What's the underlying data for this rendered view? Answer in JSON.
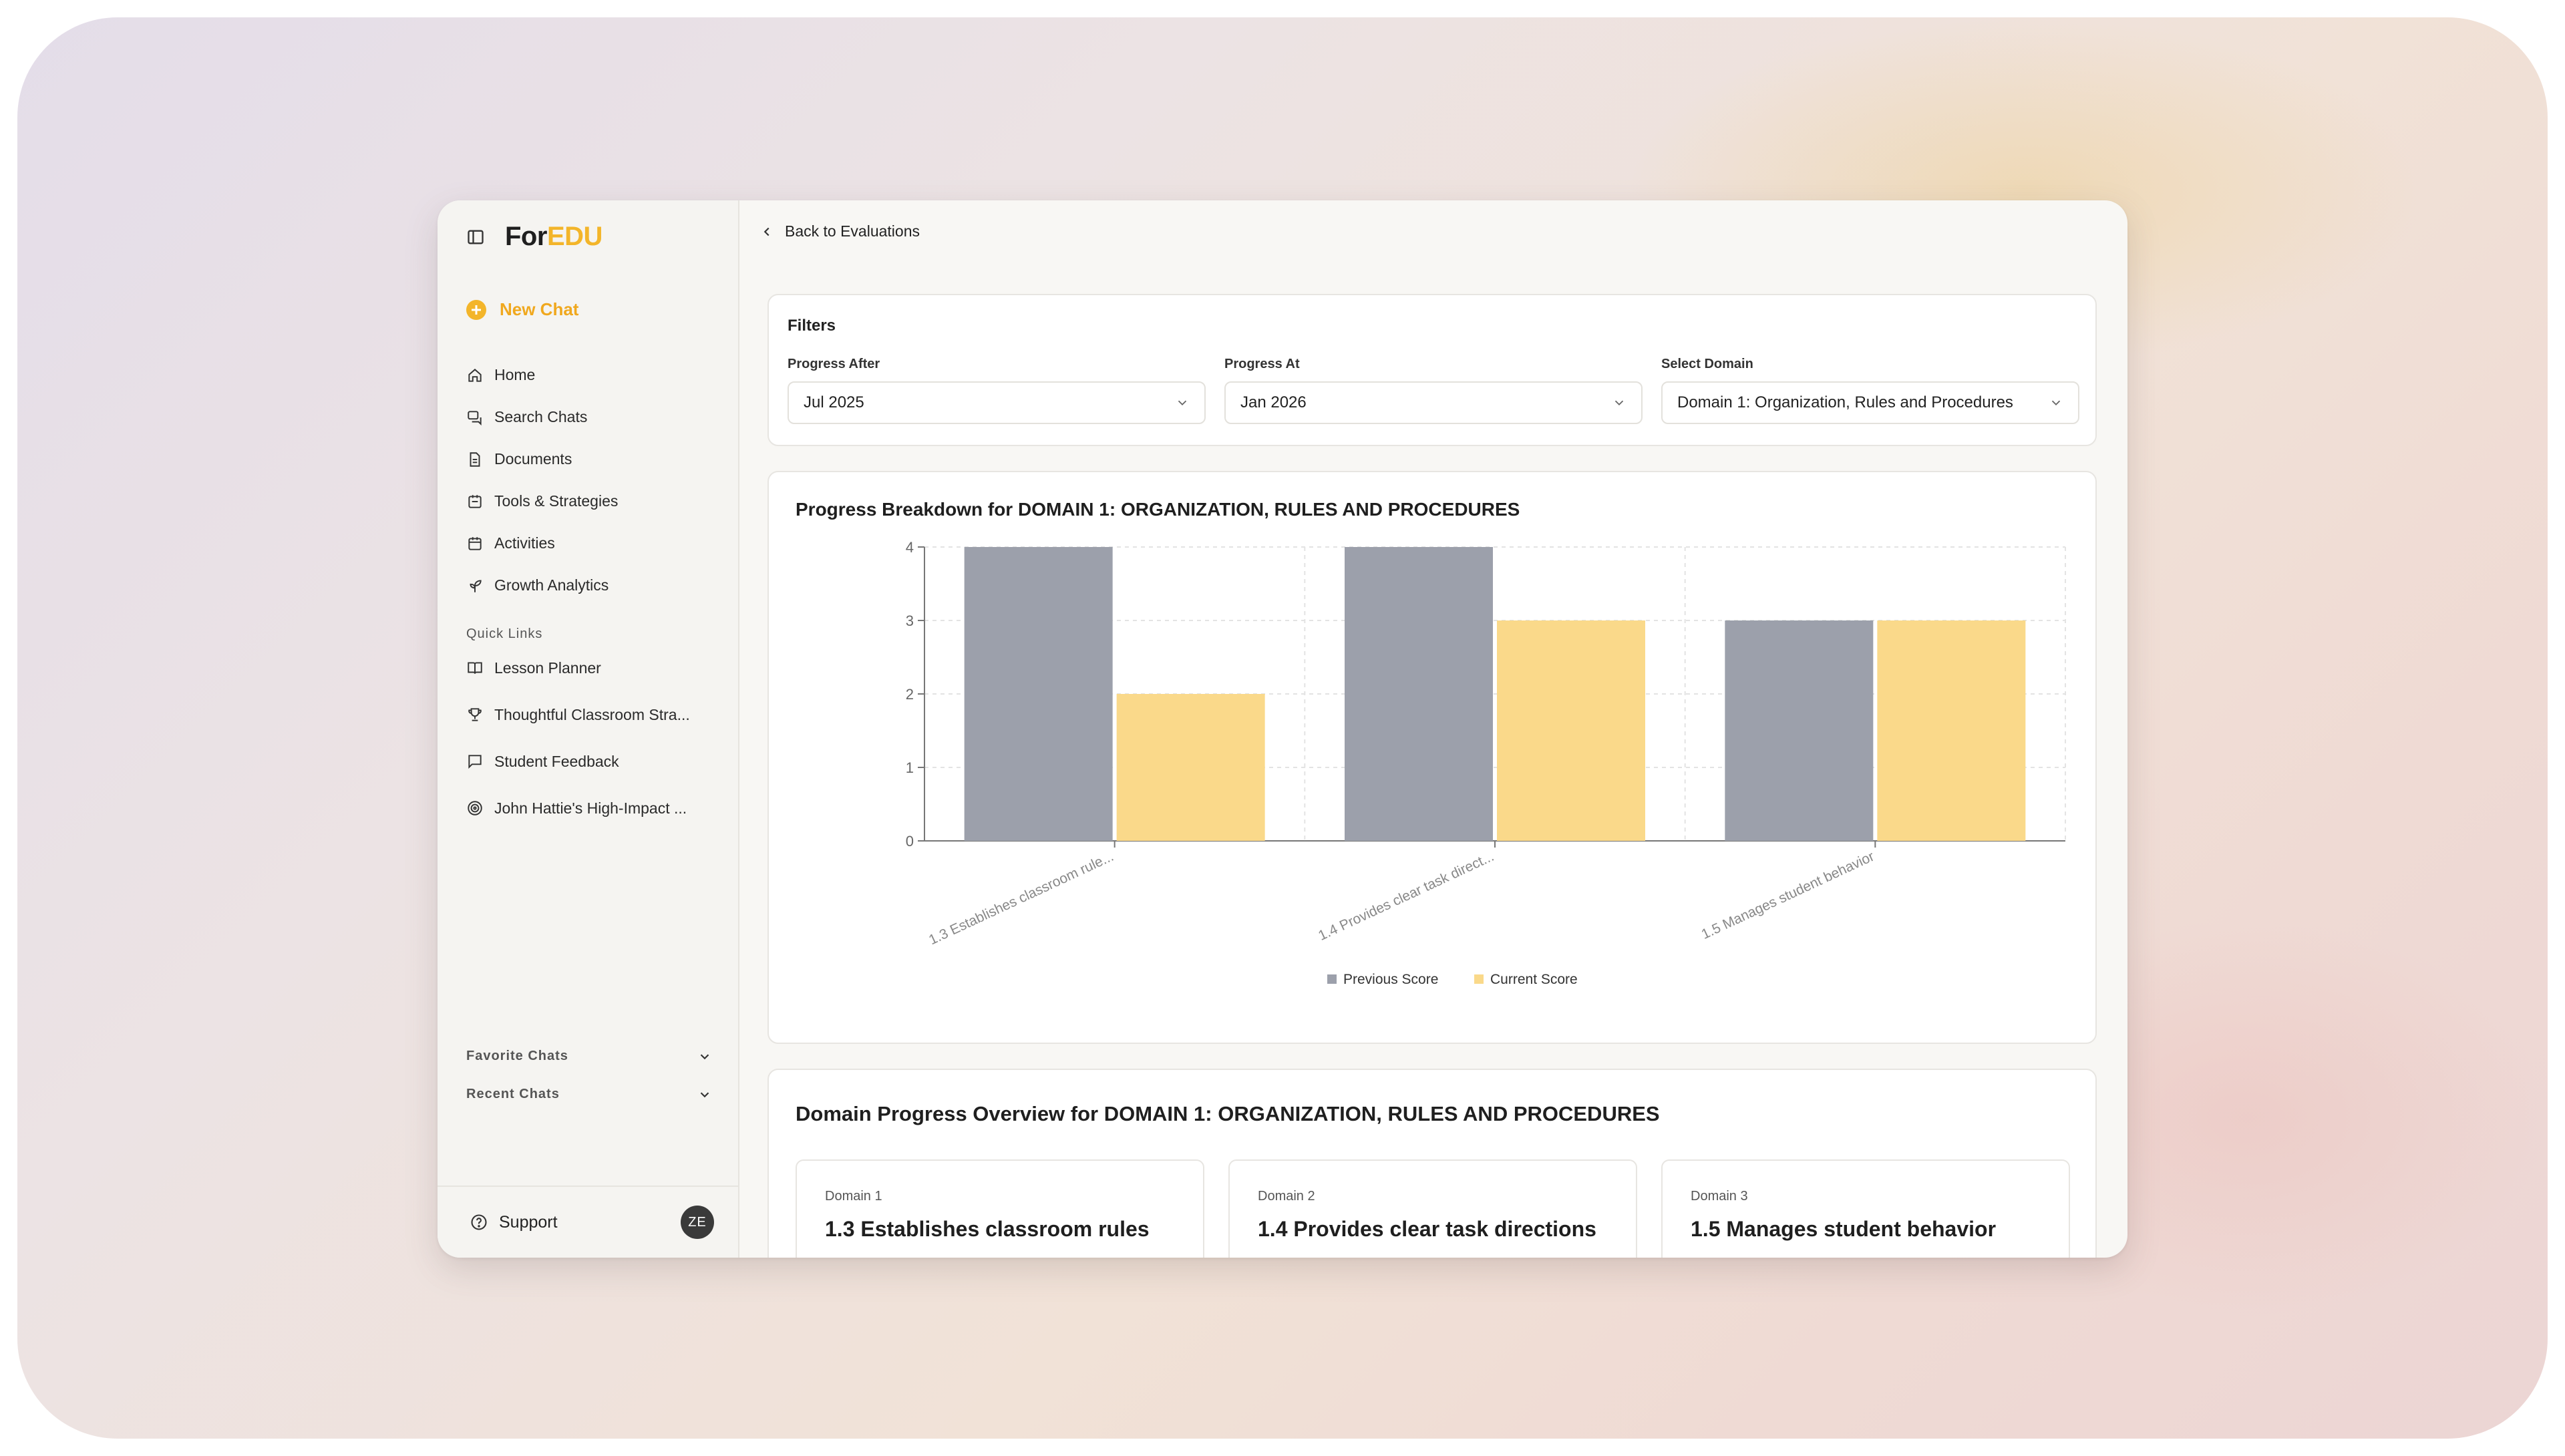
{
  "brand": {
    "part1": "For",
    "part2": "EDU"
  },
  "sidebar": {
    "new_chat": "New Chat",
    "items": [
      {
        "label": "Home",
        "icon": "home-icon"
      },
      {
        "label": "Search Chats",
        "icon": "search-chats-icon"
      },
      {
        "label": "Documents",
        "icon": "document-icon"
      },
      {
        "label": "Tools & Strategies",
        "icon": "tools-icon"
      },
      {
        "label": "Activities",
        "icon": "calendar-icon"
      },
      {
        "label": "Growth Analytics",
        "icon": "plant-icon"
      }
    ],
    "quick_links_label": "Quick Links",
    "quick_links": [
      {
        "label": "Lesson Planner",
        "icon": "book-icon"
      },
      {
        "label": "Thoughtful Classroom Stra...",
        "icon": "trophy-icon"
      },
      {
        "label": "Student Feedback",
        "icon": "message-icon"
      },
      {
        "label": "John Hattie's High-Impact ...",
        "icon": "target-icon"
      }
    ],
    "favorite_chats": "Favorite Chats",
    "recent_chats": "Recent Chats",
    "support": "Support",
    "avatar_initials": "ZE"
  },
  "main": {
    "back_label": "Back to Evaluations",
    "filters": {
      "title": "Filters",
      "progress_after_label": "Progress After",
      "progress_after_value": "Jul 2025",
      "progress_at_label": "Progress At",
      "progress_at_value": "Jan 2026",
      "domain_label": "Select Domain",
      "domain_value": "Domain 1: Organization, Rules and Procedures"
    },
    "overview": {
      "title": "Domain Progress Overview for DOMAIN 1: ORGANIZATION, RULES AND PROCEDURES",
      "cards": [
        {
          "domain": "Domain 1",
          "title": "1.3 Establishes classroom rules"
        },
        {
          "domain": "Domain 2",
          "title": "1.4 Provides clear task directions"
        },
        {
          "domain": "Domain 3",
          "title": "1.5 Manages student behavior"
        }
      ]
    }
  },
  "chart_data": {
    "type": "bar",
    "title": "Progress Breakdown for DOMAIN 1: ORGANIZATION, RULES AND PROCEDURES",
    "categories": [
      "1.3 Establishes classroom rule...",
      "1.4 Provides clear task direct...",
      "1.5 Manages student behavior"
    ],
    "series": [
      {
        "name": "Previous Score",
        "values": [
          4,
          4,
          3
        ],
        "color": "#9ca0ab"
      },
      {
        "name": "Current Score",
        "values": [
          2,
          3,
          3
        ],
        "color": "#fad98a"
      }
    ],
    "y_ticks": [
      "0",
      "1",
      "2",
      "3",
      "4"
    ],
    "ylim": [
      0,
      4
    ],
    "grid": true,
    "legend": "bottom-center"
  }
}
